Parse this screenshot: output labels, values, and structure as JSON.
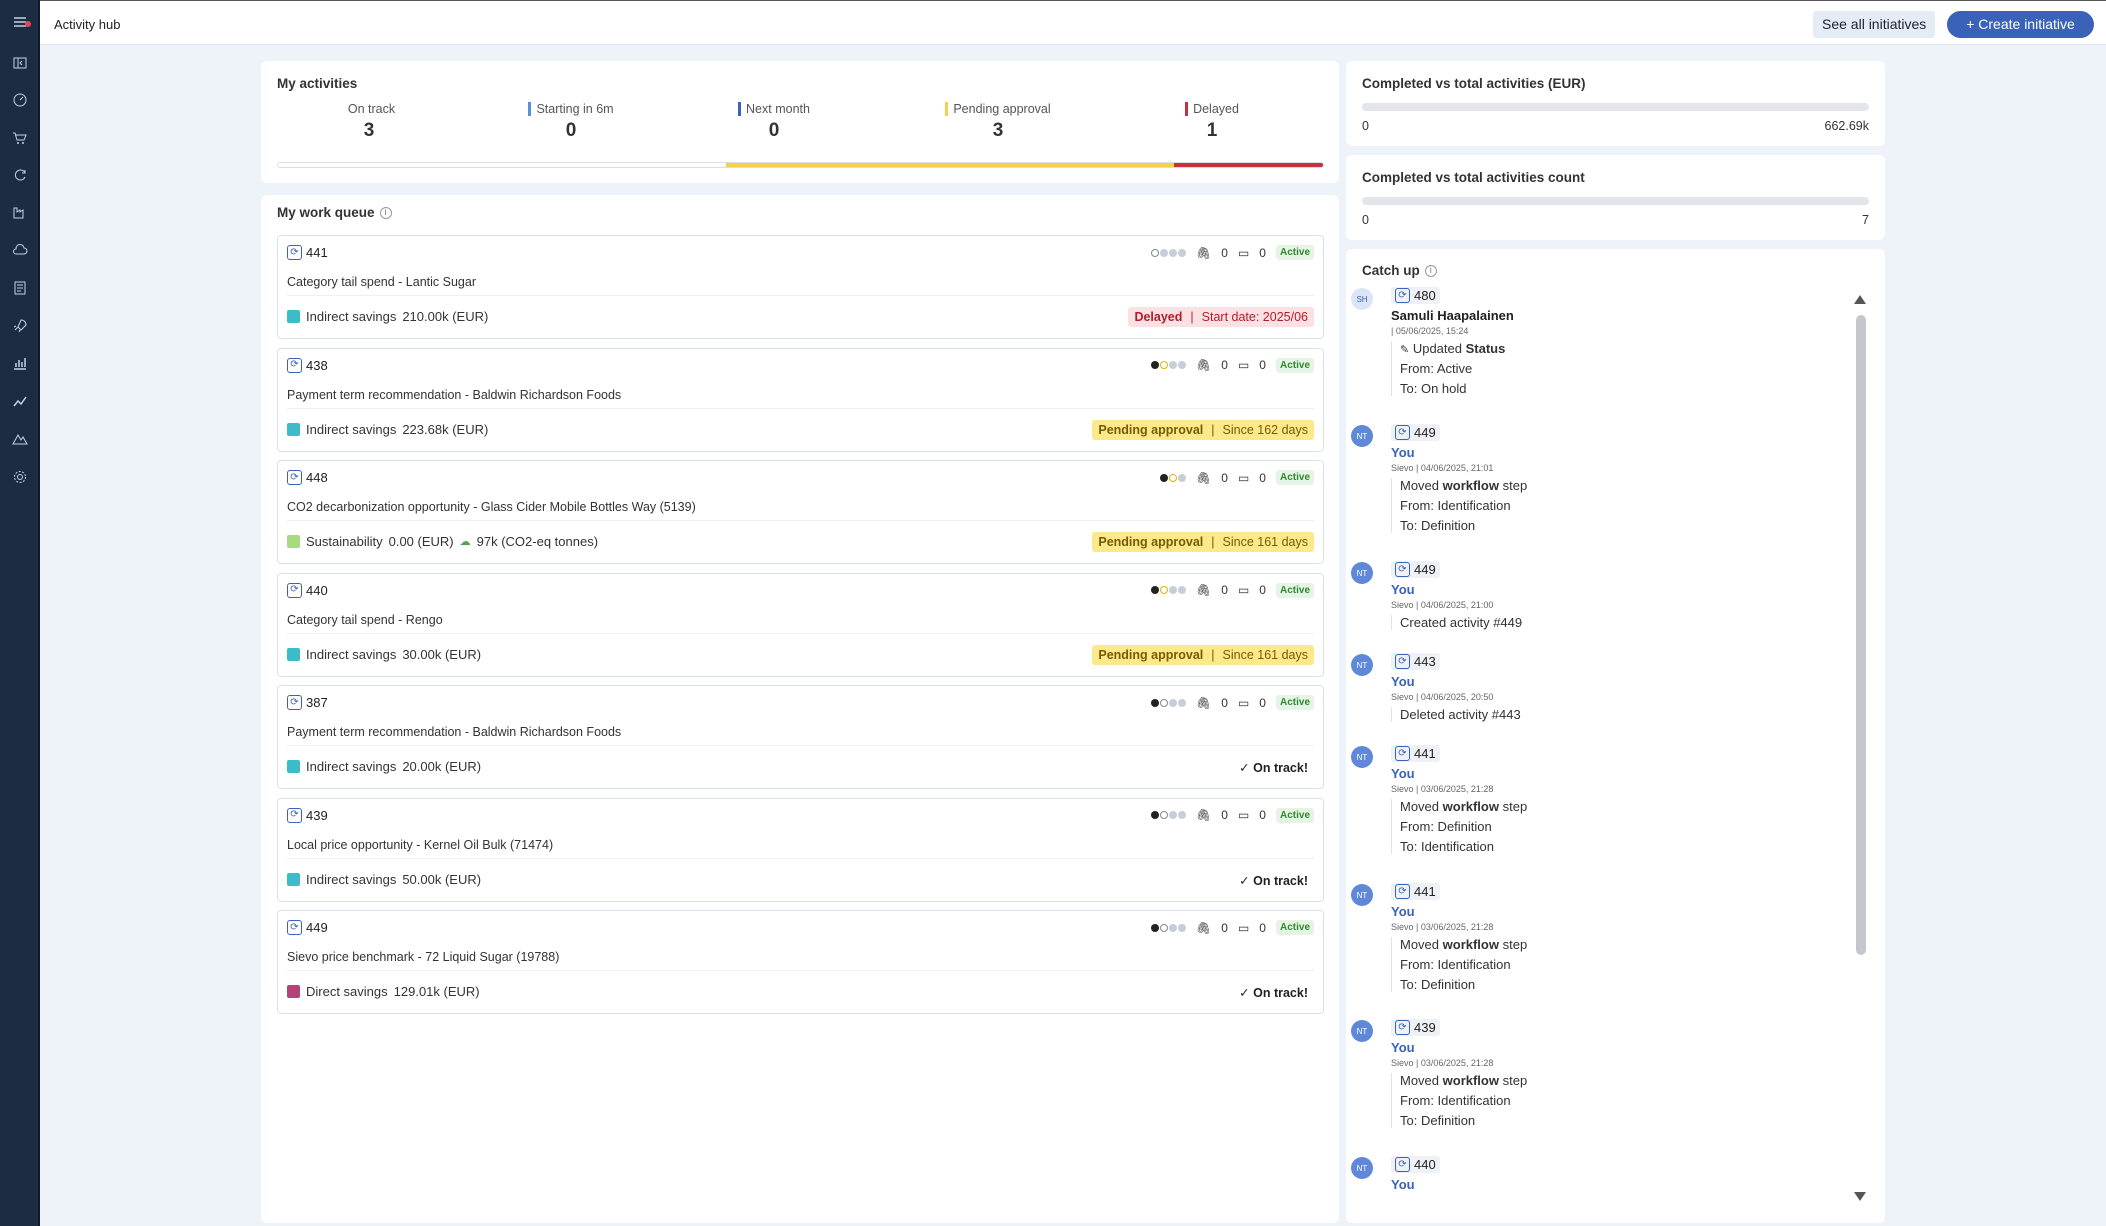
{
  "app": {
    "title": "Activity hub"
  },
  "header": {
    "see_all": "See all initiatives",
    "create": "+ Create initiative"
  },
  "sidebar": {
    "icons": [
      "menu-icon",
      "collapse-icon",
      "dashboard-icon",
      "cart-icon",
      "refresh-icon",
      "factory-icon",
      "cloud-icon",
      "report-icon",
      "rocket-icon",
      "bar-chart-icon",
      "line-chart-icon",
      "mountain-icon",
      "settings-icon"
    ]
  },
  "my_activities": {
    "title": "My activities",
    "stats": [
      {
        "label": "On track",
        "value": "3",
        "color": ""
      },
      {
        "label": "Starting in 6m",
        "value": "0",
        "color": "#5b8fd9"
      },
      {
        "label": "Next month",
        "value": "0",
        "color": "#3962b8"
      },
      {
        "label": "Pending approval",
        "value": "3",
        "color": "#f1d34a"
      },
      {
        "label": "Delayed",
        "value": "1",
        "color": "#c9303e"
      }
    ],
    "bar": [
      {
        "value": 3,
        "color": "#ffffff"
      },
      {
        "value": 3,
        "color": "#f1d34a"
      },
      {
        "value": 1,
        "color": "#c9303e"
      }
    ]
  },
  "work_queue": {
    "title": "My work queue",
    "items": [
      {
        "id": "441",
        "dots": [
          "empty",
          "grey",
          "grey",
          "grey"
        ],
        "attachments": "0",
        "comments": "0",
        "state": "Active",
        "name": "Category tail spend - Lantic Sugar",
        "type": "Indirect savings",
        "type_color": "#3cbcc8",
        "amount": "210.00k (EUR)",
        "extra": "",
        "status": "delayed",
        "status_label": "Delayed",
        "status_detail": "Start date: 2025/06"
      },
      {
        "id": "438",
        "dots": [
          "dark",
          "yellow",
          "grey",
          "grey"
        ],
        "attachments": "0",
        "comments": "0",
        "state": "Active",
        "name": "Payment term recommendation - Baldwin Richardson Foods",
        "type": "Indirect savings",
        "type_color": "#3cbcc8",
        "amount": "223.68k (EUR)",
        "extra": "",
        "status": "pending",
        "status_label": "Pending approval",
        "status_detail": "Since 162 days"
      },
      {
        "id": "448",
        "dots": [
          "dark",
          "yellow",
          "grey"
        ],
        "attachments": "0",
        "comments": "0",
        "state": "Active",
        "name": "CO2 decarbonization opportunity - Glass Cider Mobile Bottles Way (5139)",
        "type": "Sustainability",
        "type_color": "#a6dc7e",
        "amount": "0.00 (EUR)",
        "extra": "97k (CO2-eq tonnes)",
        "status": "pending",
        "status_label": "Pending approval",
        "status_detail": "Since 161 days"
      },
      {
        "id": "440",
        "dots": [
          "dark",
          "yellow",
          "grey",
          "grey"
        ],
        "attachments": "0",
        "comments": "0",
        "state": "Active",
        "name": "Category tail spend - Rengo",
        "type": "Indirect savings",
        "type_color": "#3cbcc8",
        "amount": "30.00k (EUR)",
        "extra": "",
        "status": "pending",
        "status_label": "Pending approval",
        "status_detail": "Since 161 days"
      },
      {
        "id": "387",
        "dots": [
          "dark",
          "empty",
          "grey",
          "grey"
        ],
        "attachments": "0",
        "comments": "0",
        "state": "Active",
        "name": "Payment term recommendation - Baldwin Richardson Foods",
        "type": "Indirect savings",
        "type_color": "#3cbcc8",
        "amount": "20.00k (EUR)",
        "extra": "",
        "status": "ontrack",
        "status_label": "✓ On track!",
        "status_detail": ""
      },
      {
        "id": "439",
        "dots": [
          "dark",
          "empty",
          "grey",
          "grey"
        ],
        "attachments": "0",
        "comments": "0",
        "state": "Active",
        "name": "Local price opportunity - Kernel Oil Bulk (71474)",
        "type": "Indirect savings",
        "type_color": "#3cbcc8",
        "amount": "50.00k (EUR)",
        "extra": "",
        "status": "ontrack",
        "status_label": "✓ On track!",
        "status_detail": ""
      },
      {
        "id": "449",
        "dots": [
          "dark",
          "empty",
          "grey",
          "grey"
        ],
        "attachments": "0",
        "comments": "0",
        "state": "Active",
        "name": "Sievo price benchmark - 72 Liquid Sugar (19788)",
        "type": "Direct savings",
        "type_color": "#b4437a",
        "amount": "129.01k (EUR)",
        "extra": "",
        "status": "ontrack",
        "status_label": "✓ On track!",
        "status_detail": ""
      }
    ]
  },
  "completed_eur": {
    "title": "Completed vs total activities (EUR)",
    "min": "0",
    "max": "662.69k",
    "progress": 0
  },
  "completed_count": {
    "title": "Completed vs total activities count",
    "min": "0",
    "max": "7",
    "progress": 0
  },
  "catch_up": {
    "title": "Catch up",
    "entries": [
      {
        "avatar": "SH",
        "id": "480",
        "user": "Samuli Haapalainen",
        "you": false,
        "date": "| 05/06/2025, 15:24",
        "lines": [
          "Updated Status",
          "From: Active",
          "To: On hold"
        ]
      },
      {
        "avatar": "NT",
        "id": "449",
        "user": "You",
        "you": true,
        "date": "Sievo | 04/06/2025, 21:01",
        "lines": [
          "Moved workflow step",
          "From: Identification",
          "To: Definition"
        ]
      },
      {
        "avatar": "NT",
        "id": "449",
        "user": "You",
        "you": true,
        "date": "Sievo | 04/06/2025, 21:00",
        "lines": [
          "Created activity #449"
        ]
      },
      {
        "avatar": "NT",
        "id": "443",
        "user": "You",
        "you": true,
        "date": "Sievo | 04/06/2025, 20:50",
        "lines": [
          "Deleted activity #443"
        ]
      },
      {
        "avatar": "NT",
        "id": "441",
        "user": "You",
        "you": true,
        "date": "Sievo | 03/06/2025, 21:28",
        "lines": [
          "Moved workflow step",
          "From: Definition",
          "To: Identification"
        ]
      },
      {
        "avatar": "NT",
        "id": "441",
        "user": "You",
        "you": true,
        "date": "Sievo | 03/06/2025, 21:28",
        "lines": [
          "Moved workflow step",
          "From: Identification",
          "To: Definition"
        ]
      },
      {
        "avatar": "NT",
        "id": "439",
        "user": "You",
        "you": true,
        "date": "Sievo | 03/06/2025, 21:28",
        "lines": [
          "Moved workflow step",
          "From: Identification",
          "To: Definition"
        ]
      },
      {
        "avatar": "NT",
        "id": "440",
        "user": "You",
        "you": true,
        "date": "",
        "lines": []
      }
    ]
  }
}
